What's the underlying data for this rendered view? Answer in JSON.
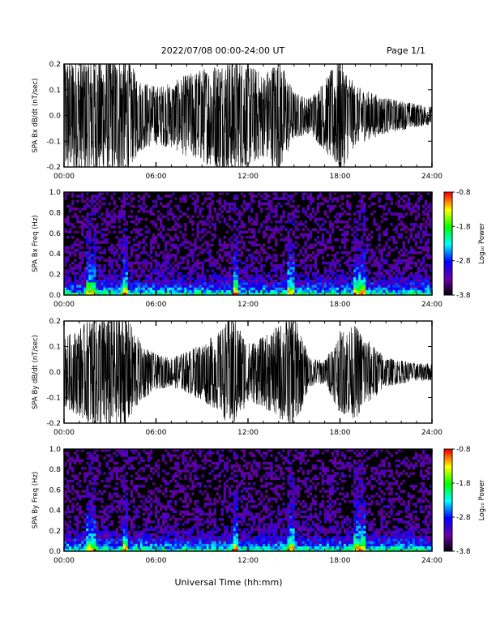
{
  "header": {
    "title": "2022/07/08  00:00-24:00 UT",
    "page": "Page 1/1"
  },
  "xlabel": "Universal Time (hh:mm)",
  "colors": {
    "trace": "#000000",
    "colormap": [
      "#000000",
      "#6a00a8",
      "#0000ff",
      "#00ffff",
      "#00ff00",
      "#ffff00",
      "#ff0000"
    ]
  },
  "chart_data": [
    {
      "type": "line",
      "ylabel": "SPA Bx dB/dt (nT/sec)",
      "xlim": [
        0,
        24
      ],
      "ylim": [
        -0.2,
        0.2
      ],
      "xticks": [
        "00:00",
        "06:00",
        "12:00",
        "18:00",
        "24:00"
      ],
      "yticks": [
        "0.2",
        "0.1",
        "0.0",
        "-0.1",
        "-0.2"
      ],
      "ytick_values": [
        0.2,
        0.1,
        0.0,
        -0.1,
        -0.2
      ],
      "envelope_hours": [
        0,
        1,
        2,
        3,
        4,
        5,
        6,
        7,
        8,
        9,
        10,
        11,
        12,
        13,
        14,
        15,
        16,
        17,
        18,
        19,
        20,
        21,
        22,
        23,
        24
      ],
      "envelope_amplitude": [
        0.2,
        0.2,
        0.2,
        0.2,
        0.2,
        0.12,
        0.1,
        0.11,
        0.14,
        0.16,
        0.18,
        0.2,
        0.18,
        0.14,
        0.2,
        0.08,
        0.06,
        0.12,
        0.2,
        0.1,
        0.08,
        0.06,
        0.05,
        0.04,
        0.03
      ]
    },
    {
      "type": "heatmap",
      "ylabel": "SPA Bx Freq (Hz)",
      "xlim": [
        0,
        24
      ],
      "ylim": [
        0.0,
        1.0
      ],
      "xticks": [
        "00:00",
        "06:00",
        "12:00",
        "18:00",
        "24:00"
      ],
      "yticks": [
        "1.0",
        "0.8",
        "0.6",
        "0.4",
        "0.2",
        "0.0"
      ],
      "ytick_values": [
        1.0,
        0.8,
        0.6,
        0.4,
        0.2,
        0.0
      ],
      "colorbar_label": "Log₁₀ Power",
      "colorbar_ticks": [
        "-0.8",
        "-1.8",
        "-2.8",
        "-3.8"
      ],
      "colorbar_tick_values": [
        -0.8,
        -1.8,
        -2.8,
        -3.8
      ],
      "colorbar_range": [
        -3.8,
        -0.8
      ],
      "bright_bands_hours": [
        1.5,
        2.0,
        3.8,
        4.2,
        11.0,
        11.3,
        14.5,
        15.0,
        18.9,
        19.6
      ]
    },
    {
      "type": "line",
      "ylabel": "SPA By dB/dt (nT/sec)",
      "xlim": [
        0,
        24
      ],
      "ylim": [
        -0.2,
        0.2
      ],
      "xticks": [
        "00:00",
        "06:00",
        "12:00",
        "18:00",
        "24:00"
      ],
      "yticks": [
        "0.2",
        "0.1",
        "0.0",
        "-0.1",
        "-0.2"
      ],
      "ytick_values": [
        0.2,
        0.1,
        0.0,
        -0.1,
        -0.2
      ],
      "envelope_hours": [
        0,
        1,
        2,
        3,
        4,
        5,
        6,
        7,
        8,
        9,
        10,
        11,
        12,
        13,
        14,
        15,
        16,
        17,
        18,
        19,
        20,
        21,
        22,
        23,
        24
      ],
      "envelope_amplitude": [
        0.12,
        0.15,
        0.2,
        0.2,
        0.2,
        0.1,
        0.06,
        0.05,
        0.07,
        0.1,
        0.13,
        0.2,
        0.1,
        0.12,
        0.16,
        0.2,
        0.05,
        0.04,
        0.14,
        0.16,
        0.1,
        0.05,
        0.04,
        0.03,
        0.03
      ]
    },
    {
      "type": "heatmap",
      "ylabel": "SPA By Freq (Hz)",
      "xlim": [
        0,
        24
      ],
      "ylim": [
        0.0,
        1.0
      ],
      "xticks": [
        "00:00",
        "06:00",
        "12:00",
        "18:00",
        "24:00"
      ],
      "yticks": [
        "1.0",
        "0.8",
        "0.6",
        "0.4",
        "0.2",
        "0.0"
      ],
      "ytick_values": [
        1.0,
        0.8,
        0.6,
        0.4,
        0.2,
        0.0
      ],
      "colorbar_label": "Log₁₀ Power",
      "colorbar_ticks": [
        "-0.8",
        "-1.8",
        "-2.8",
        "-3.8"
      ],
      "colorbar_tick_values": [
        -0.8,
        -1.8,
        -2.8,
        -3.8
      ],
      "colorbar_range": [
        -3.8,
        -0.8
      ],
      "bright_bands_hours": [
        1.5,
        2.0,
        3.8,
        4.2,
        11.0,
        11.3,
        14.5,
        15.0,
        18.9,
        19.6
      ]
    }
  ]
}
